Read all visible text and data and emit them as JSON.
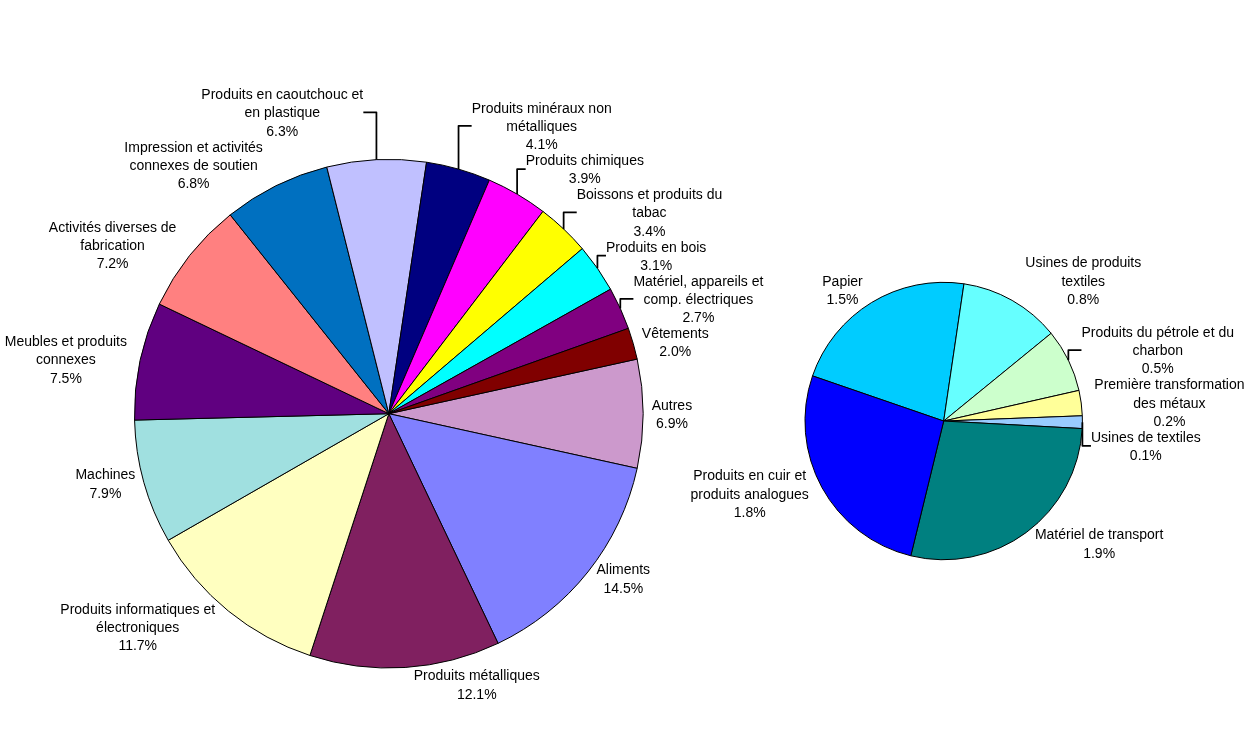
{
  "chart_data": [
    {
      "type": "pie",
      "categories": [
        "Autres",
        "Aliments",
        "Produits métalliques",
        "Produits informatiques et électroniques",
        "Machines",
        "Meubles et produits connexes",
        "Activités diverses de fabrication",
        "Impression et activités connexes de soutien",
        "Produits en caoutchouc et en plastique",
        "Produits minéraux non métalliques",
        "Produits chimiques",
        "Boissons et produits du tabac",
        "Produits en bois",
        "Matériel, appareils et comp. électriques",
        "Vêtements"
      ],
      "values": [
        6.9,
        14.5,
        12.1,
        11.7,
        7.9,
        7.5,
        7.2,
        6.8,
        6.3,
        4.1,
        3.9,
        3.4,
        3.1,
        2.7,
        2.0
      ],
      "value_labels": [
        "6.9%",
        "14.5%",
        "12.1%",
        "11.7%",
        "7.9%",
        "7.5%",
        "7.2%",
        "6.8%",
        "6.3%",
        "4.1%",
        "3.9%",
        "3.4%",
        "3.1%",
        "2.7%",
        "2.0%"
      ],
      "colors": [
        "#cc99cc",
        "#8080ff",
        "#802060",
        "#ffffc0",
        "#a0e0e0",
        "#600080",
        "#ff8080",
        "#0070c0",
        "#c0c0ff",
        "#000080",
        "#ff00ff",
        "#ffff00",
        "#00ffff",
        "#800080",
        "#800000"
      ]
    },
    {
      "type": "pie",
      "categories": [
        "Papier",
        "Usines de produits textiles",
        "Produits du pétrole et du charbon",
        "Première transformation des métaux",
        "Usines de textiles",
        "Matériel de transport",
        "Produits en cuir et produits analogues"
      ],
      "values": [
        1.5,
        0.8,
        0.5,
        0.2,
        0.1,
        1.9,
        1.8
      ],
      "value_labels": [
        "1.5%",
        "0.8%",
        "0.5%",
        "0.2%",
        "0.1%",
        "1.9%",
        "1.8%"
      ],
      "colors": [
        "#00ccff",
        "#66ffff",
        "#ccffcc",
        "#ffff99",
        "#99ccff",
        "#008080",
        "#0000ff"
      ]
    }
  ]
}
